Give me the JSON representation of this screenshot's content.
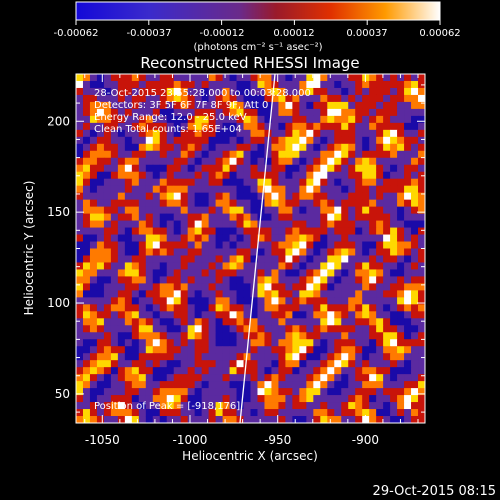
{
  "colorbar": {
    "ticks": [
      "-0.00062",
      "-0.00037",
      "-0.00012",
      "0.00012",
      "0.00037",
      "0.00062"
    ],
    "units": "(photons cm⁻² s⁻¹ asec⁻²)"
  },
  "annotations": {
    "time_range": "28-Oct-2015 23:55:28.000 to 00:03:28.000",
    "detectors": "Detectors: 3F 5F 6F 7F 8F 9F, Att 0",
    "energy": "Energy Range: 12.0 - 25.0 keV",
    "method": "Clean     Total counts: 1.65E+04",
    "peak": "Position of Peak = [-918,176]"
  },
  "timestamp": "29-Oct-2015 08:15",
  "chart_data": {
    "type": "heatmap",
    "title": "Reconstructed RHESSI Image",
    "xlabel": "Heliocentric X (arcsec)",
    "ylabel": "Heliocentric Y (arcsec)",
    "xlim": [
      -1065,
      -866
    ],
    "ylim": [
      34,
      226
    ],
    "x_ticks": [
      -1050,
      -1000,
      -950,
      -900
    ],
    "y_ticks": [
      50,
      100,
      150,
      200
    ],
    "colorbar_range": [
      -0.00062,
      0.00062
    ],
    "peak_position": [
      -918,
      176
    ],
    "colors": {
      "dark_blue": "#1a0aa8",
      "purple": "#5b2aa0",
      "red": "#c8140a",
      "orange": "#ff7a00",
      "yellow": "#ffd800",
      "white": "#ffffff"
    }
  }
}
